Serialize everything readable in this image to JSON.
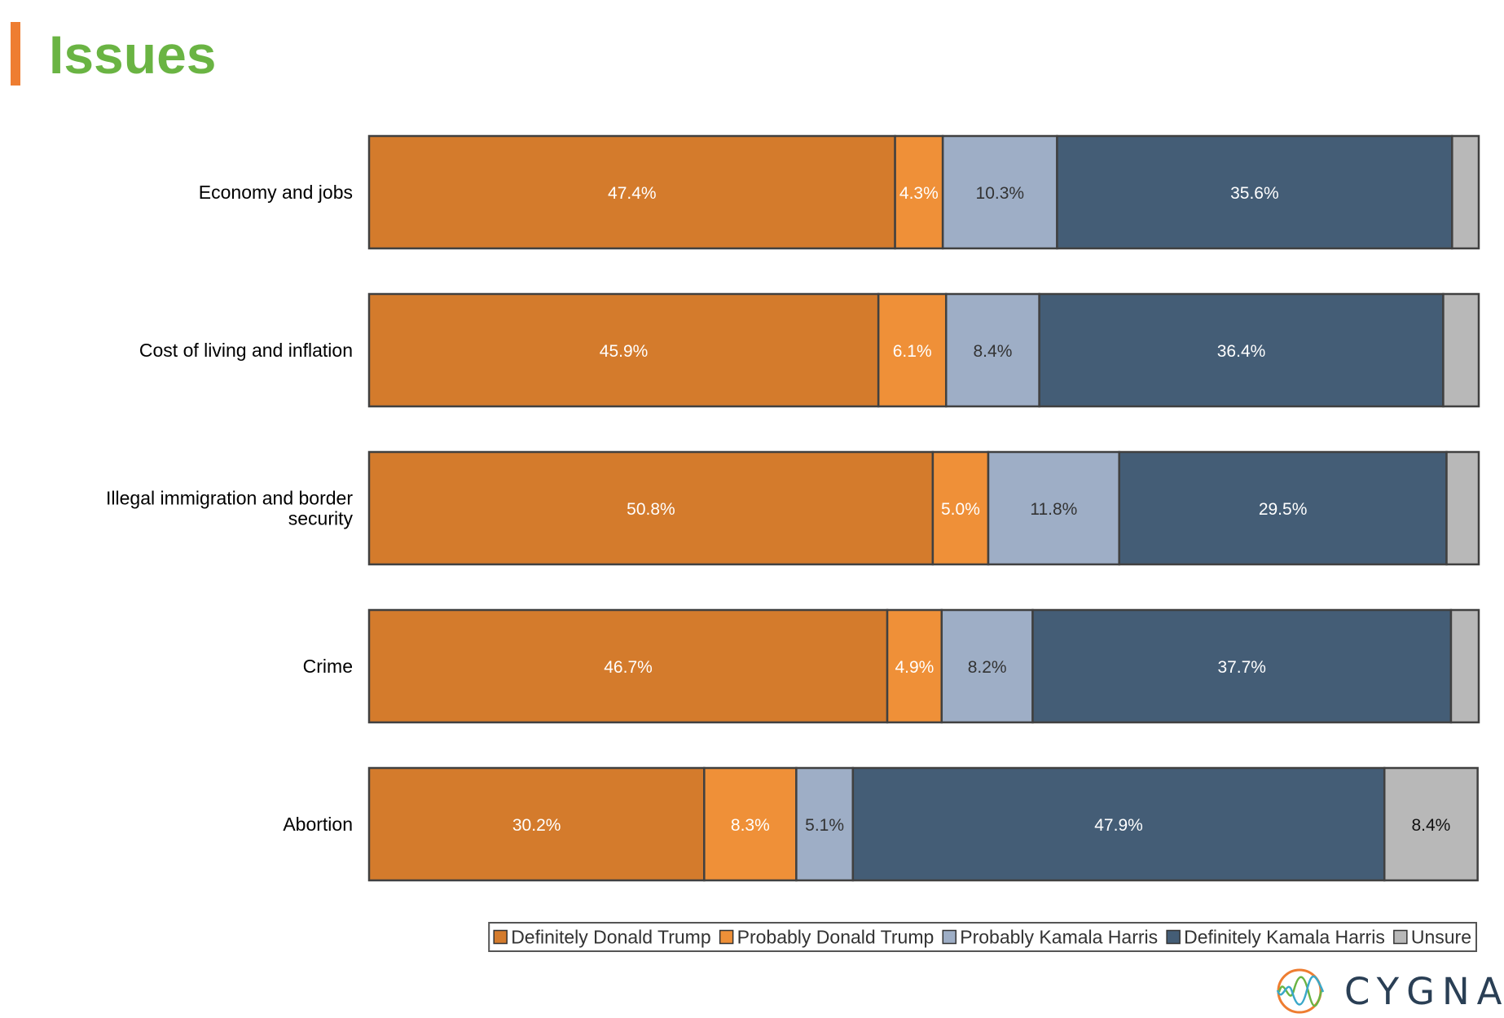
{
  "header": {
    "title": "Issues",
    "accent_color": "#ee7d31",
    "title_color": "#6ab443"
  },
  "chart_data": {
    "type": "bar",
    "orientation": "horizontal",
    "stacked": true,
    "normalized_to": 100,
    "title": "",
    "xlabel": "",
    "ylabel": "",
    "categories": [
      "Economy and jobs",
      "Cost of living and inflation",
      "Illegal immigration and border security",
      "Crime",
      "Abortion"
    ],
    "series": [
      {
        "name": "Definitely Donald Trump",
        "color": "#d47b2c",
        "label_color": "#ffffff",
        "values": [
          47.4,
          45.9,
          50.8,
          46.7,
          30.2
        ]
      },
      {
        "name": "Probably Donald Trump",
        "color": "#ef9038",
        "label_color": "#ffffff",
        "values": [
          4.3,
          6.1,
          5.0,
          4.9,
          8.3
        ]
      },
      {
        "name": "Probably Kamala Harris",
        "color": "#9eaec6",
        "label_color": "#333333",
        "values": [
          10.3,
          8.4,
          11.8,
          8.2,
          5.1
        ]
      },
      {
        "name": "Definitely Kamala Harris",
        "color": "#445d76",
        "label_color": "#ffffff",
        "values": [
          35.6,
          36.4,
          29.5,
          37.7,
          47.9
        ]
      },
      {
        "name": "Unsure",
        "color": "#b8b8b8",
        "label_color": "#111111",
        "values": [
          2.4,
          3.2,
          2.9,
          2.5,
          8.4
        ]
      }
    ],
    "data_labels": [
      [
        "47.4%",
        "4.3%",
        "10.3%",
        "35.6%",
        ""
      ],
      [
        "45.9%",
        "6.1%",
        "8.4%",
        "36.4%",
        ""
      ],
      [
        "50.8%",
        "5.0%",
        "11.8%",
        "29.5%",
        ""
      ],
      [
        "46.7%",
        "4.9%",
        "8.2%",
        "37.7%",
        ""
      ],
      [
        "30.2%",
        "8.3%",
        "5.1%",
        "47.9%",
        "8.4%"
      ]
    ],
    "legend_position": "bottom-right",
    "grid": false
  },
  "brand": {
    "name": "CYGNAL",
    "logo_icon": "cygnal-wave-icon"
  }
}
